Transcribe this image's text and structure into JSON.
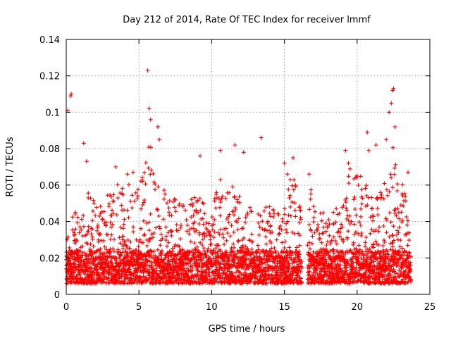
{
  "chart_data": {
    "type": "scatter",
    "title": "Day 212 of 2014, Rate Of TEC Index for receiver lmmf",
    "xlabel": "GPS time / hours",
    "ylabel": "ROTI / TECUs",
    "xlim": [
      0,
      25
    ],
    "ylim": [
      0,
      0.14
    ],
    "xticks": [
      "0",
      "5",
      "10",
      "15",
      "20",
      "25"
    ],
    "yticks": [
      "0",
      "0.02",
      "0.04",
      "0.06",
      "0.08",
      "0.1",
      "0.12",
      "0.14"
    ],
    "xtick_values": [
      0,
      5,
      10,
      15,
      20,
      25
    ],
    "ytick_values": [
      0,
      0.02,
      0.04,
      0.06,
      0.08,
      0.1,
      0.12,
      0.14
    ],
    "grid": true,
    "marker": "+",
    "color": "#ff0000",
    "series": [
      {
        "name": "ROTI",
        "note": "Dense band 0.005-0.04 TECU spanning 0-16.2 h and 16.6-23.7 h; envelope maxima listed below",
        "envelope": {
          "x": [
            0.1,
            0.3,
            0.7,
            1.0,
            1.5,
            2.0,
            2.5,
            3.0,
            3.5,
            4.0,
            4.5,
            5.0,
            5.5,
            5.7,
            6.0,
            6.5,
            7.0,
            7.5,
            8.0,
            8.5,
            9.0,
            9.5,
            10.0,
            10.5,
            11.0,
            11.5,
            12.0,
            12.5,
            13.0,
            13.5,
            14.0,
            14.5,
            15.0,
            15.5,
            16.0,
            16.2,
            16.8,
            17.2,
            17.6,
            18.0,
            18.5,
            19.0,
            19.5,
            20.0,
            20.5,
            21.0,
            21.5,
            22.0,
            22.4,
            22.8,
            23.2,
            23.6
          ],
          "y": [
            0.035,
            0.052,
            0.045,
            0.04,
            0.057,
            0.05,
            0.048,
            0.058,
            0.06,
            0.065,
            0.062,
            0.058,
            0.08,
            0.095,
            0.07,
            0.06,
            0.055,
            0.052,
            0.05,
            0.052,
            0.058,
            0.05,
            0.048,
            0.062,
            0.055,
            0.06,
            0.058,
            0.052,
            0.05,
            0.048,
            0.05,
            0.045,
            0.048,
            0.068,
            0.055,
            0.04,
            0.06,
            0.05,
            0.045,
            0.045,
            0.048,
            0.05,
            0.07,
            0.065,
            0.065,
            0.055,
            0.055,
            0.07,
            0.09,
            0.065,
            0.06,
            0.05
          ]
        },
        "outliers": {
          "x": [
            0.1,
            0.3,
            0.35,
            1.2,
            1.4,
            3.4,
            4.2,
            4.6,
            5.6,
            5.7,
            5.8,
            6.3,
            6.4,
            9.2,
            10.6,
            10.6,
            11.6,
            12.2,
            13.4,
            15.0,
            15.2,
            15.4,
            15.6,
            16.7,
            19.2,
            19.4,
            20.0,
            20.7,
            20.8,
            21.3,
            22.0,
            22.2,
            22.35,
            22.45,
            22.5,
            22.6,
            23.5
          ],
          "y": [
            0.101,
            0.109,
            0.11,
            0.083,
            0.073,
            0.07,
            0.066,
            0.067,
            0.123,
            0.102,
            0.096,
            0.092,
            0.085,
            0.076,
            0.079,
            0.063,
            0.082,
            0.078,
            0.086,
            0.072,
            0.066,
            0.063,
            0.075,
            0.066,
            0.079,
            0.072,
            0.065,
            0.089,
            0.079,
            0.082,
            0.085,
            0.1,
            0.105,
            0.112,
            0.113,
            0.092,
            0.067
          ]
        }
      }
    ]
  }
}
